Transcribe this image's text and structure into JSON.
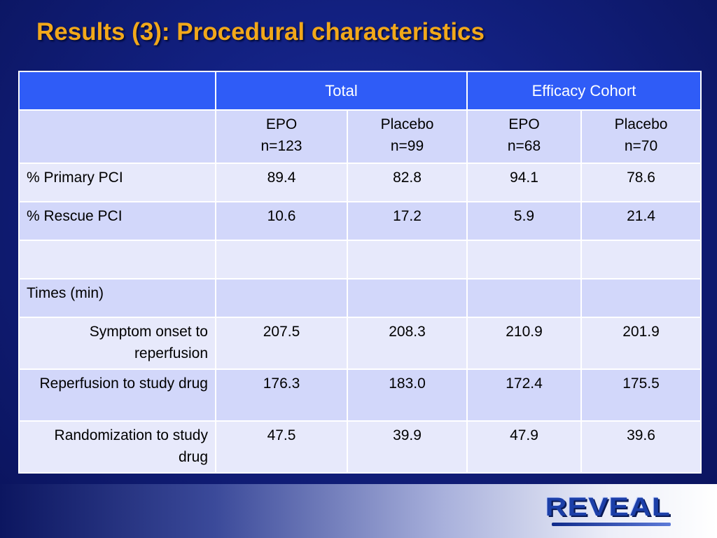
{
  "slide": {
    "title": "Results (3): Procedural characteristics",
    "logo_text": "REVEAL"
  },
  "table": {
    "group_headers": [
      "",
      "Total",
      "Efficacy Cohort"
    ],
    "sub_headers": [
      {
        "line1": "EPO",
        "line2": "n=123"
      },
      {
        "line1": "Placebo",
        "line2": "n=99"
      },
      {
        "line1": "EPO",
        "line2": "n=68"
      },
      {
        "line1": "Placebo",
        "line2": "n=70"
      }
    ],
    "rows": [
      {
        "label": "% Primary PCI",
        "values": [
          "89.4",
          "82.8",
          "94.1",
          "78.6"
        ]
      },
      {
        "label": "% Rescue PCI",
        "values": [
          "10.6",
          "17.2",
          "5.9",
          "21.4"
        ]
      },
      {
        "label": "",
        "values": [
          "",
          "",
          "",
          ""
        ]
      },
      {
        "label": "Times (min)",
        "values": [
          "",
          "",
          "",
          ""
        ]
      },
      {
        "label": "Symptom onset to reperfusion",
        "values": [
          "207.5",
          "208.3",
          "210.9",
          "201.9"
        ]
      },
      {
        "label": "Reperfusion to study drug",
        "values": [
          "176.3",
          "183.0",
          "172.4",
          "175.5"
        ]
      },
      {
        "label": "Randomization to study drug",
        "values": [
          "47.5",
          "39.9",
          "47.9",
          "39.6"
        ]
      }
    ]
  },
  "colors": {
    "title": "#f2a81a",
    "header_blue": "#2f5cf7",
    "row_light": "#e7e9fb",
    "row_dark": "#d2d7fa"
  }
}
